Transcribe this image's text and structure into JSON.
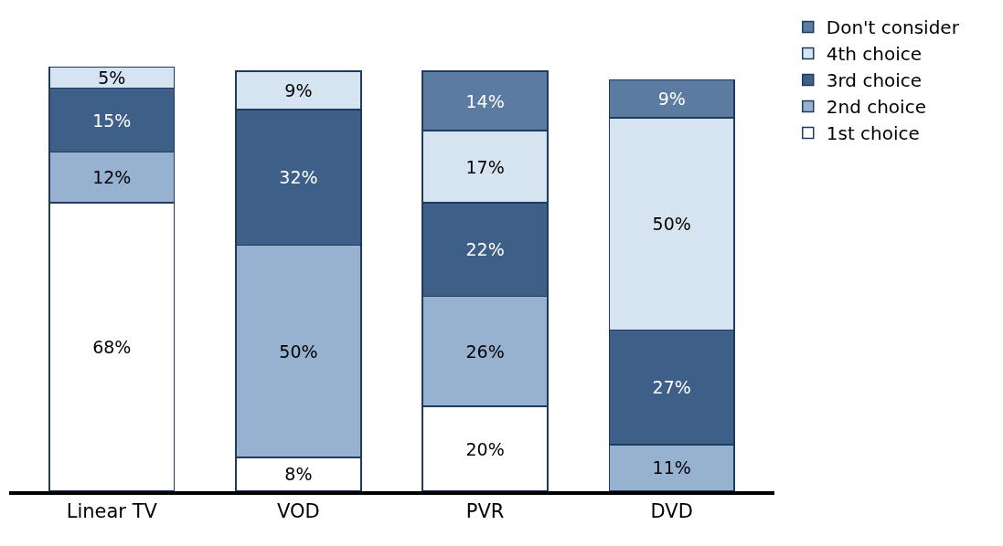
{
  "chart_data": {
    "type": "bar",
    "stacked": true,
    "categories": [
      "Linear TV",
      "VOD",
      "PVR",
      "DVD"
    ],
    "series": [
      {
        "name": "1st choice",
        "color": "#ffffff",
        "values": [
          68,
          8,
          20,
          null
        ],
        "value_labels": [
          "68%",
          "8%",
          "20%",
          null
        ]
      },
      {
        "name": "2nd choice",
        "color": "#97b2d1",
        "values": [
          12,
          50,
          26,
          11
        ],
        "value_labels": [
          "12%",
          "50%",
          "26%",
          "11%"
        ]
      },
      {
        "name": "3rd choice",
        "color": "#3e5f87",
        "values": [
          15,
          32,
          22,
          27
        ],
        "value_labels": [
          "15%",
          "32%",
          "22%",
          "27%"
        ]
      },
      {
        "name": "4th choice",
        "color": "#d6e4f1",
        "values": [
          5,
          9,
          17,
          50
        ],
        "value_labels": [
          "5%",
          "9%",
          "17%",
          "50%"
        ]
      },
      {
        "name": "Don't consider",
        "color": "#5c7ba0",
        "values": [
          null,
          null,
          14,
          9
        ],
        "value_labels": [
          null,
          null,
          "14%",
          "9%"
        ]
      }
    ],
    "legend": "top right",
    "tick_labels": "x"
  }
}
